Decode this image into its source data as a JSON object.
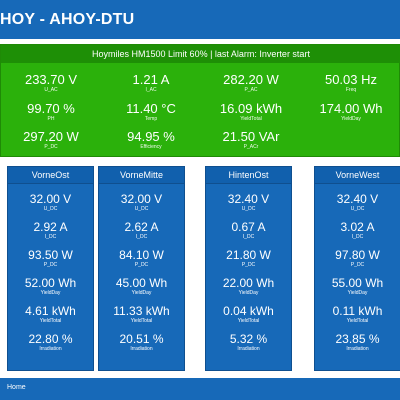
{
  "header": {
    "title": "HOY - AHOY-DTU"
  },
  "inverter": {
    "title": "Hoymiles HM1500 Limit 60% | last Alarm: Inverter start",
    "metrics": [
      {
        "value": "233.70",
        "unit": "V",
        "label": "U_AC"
      },
      {
        "value": "1.21",
        "unit": "A",
        "label": "I_AC"
      },
      {
        "value": "282.20",
        "unit": "W",
        "label": "P_AC"
      },
      {
        "value": "50.03",
        "unit": "Hz",
        "label": "Freq"
      },
      {
        "value": "99.70",
        "unit": "%",
        "label": "PH"
      },
      {
        "value": "11.40",
        "unit": "°C",
        "label": "Temp"
      },
      {
        "value": "16.09",
        "unit": "kWh",
        "label": "YieldTotal"
      },
      {
        "value": "174.00",
        "unit": "Wh",
        "label": "YieldDay"
      },
      {
        "value": "297.20",
        "unit": "W",
        "label": "P_DC"
      },
      {
        "value": "94.95",
        "unit": "%",
        "label": "Efficiency"
      },
      {
        "value": "21.50",
        "unit": "VAr",
        "label": "P_ACr"
      }
    ]
  },
  "channels": [
    {
      "name": "VorneOst",
      "metrics": [
        {
          "value": "32.00",
          "unit": "V",
          "label": "U_DC"
        },
        {
          "value": "2.92",
          "unit": "A",
          "label": "I_DC"
        },
        {
          "value": "93.50",
          "unit": "W",
          "label": "P_DC"
        },
        {
          "value": "52.00",
          "unit": "Wh",
          "label": "YieldDay"
        },
        {
          "value": "4.61",
          "unit": "kWh",
          "label": "YieldTotal"
        },
        {
          "value": "22.80",
          "unit": "%",
          "label": "Irradiation"
        }
      ]
    },
    {
      "name": "VorneMitte",
      "metrics": [
        {
          "value": "32.00",
          "unit": "V",
          "label": "U_DC"
        },
        {
          "value": "2.62",
          "unit": "A",
          "label": "I_DC"
        },
        {
          "value": "84.10",
          "unit": "W",
          "label": "P_DC"
        },
        {
          "value": "45.00",
          "unit": "Wh",
          "label": "YieldDay"
        },
        {
          "value": "11.33",
          "unit": "kWh",
          "label": "YieldTotal"
        },
        {
          "value": "20.51",
          "unit": "%",
          "label": "Irradiation"
        }
      ]
    },
    {
      "name": "HintenOst",
      "metrics": [
        {
          "value": "32.40",
          "unit": "V",
          "label": "U_DC"
        },
        {
          "value": "0.67",
          "unit": "A",
          "label": "I_DC"
        },
        {
          "value": "21.80",
          "unit": "W",
          "label": "P_DC"
        },
        {
          "value": "22.00",
          "unit": "Wh",
          "label": "YieldDay"
        },
        {
          "value": "0.04",
          "unit": "kWh",
          "label": "YieldTotal"
        },
        {
          "value": "5.32",
          "unit": "%",
          "label": "Irradiation"
        }
      ]
    },
    {
      "name": "VorneWest",
      "metrics": [
        {
          "value": "32.40",
          "unit": "V",
          "label": "U_DC"
        },
        {
          "value": "3.02",
          "unit": "A",
          "label": "I_DC"
        },
        {
          "value": "97.80",
          "unit": "W",
          "label": "P_DC"
        },
        {
          "value": "55.00",
          "unit": "Wh",
          "label": "YieldDay"
        },
        {
          "value": "0.11",
          "unit": "kWh",
          "label": "YieldTotal"
        },
        {
          "value": "23.85",
          "unit": "%",
          "label": "Irradiation"
        }
      ]
    }
  ],
  "footer": {
    "home_label": "Home"
  },
  "colors": {
    "header": "#1769b8",
    "inverter_panel": "#2bb10b",
    "channel_panel": "#1769b8",
    "text": "#ffffff"
  }
}
